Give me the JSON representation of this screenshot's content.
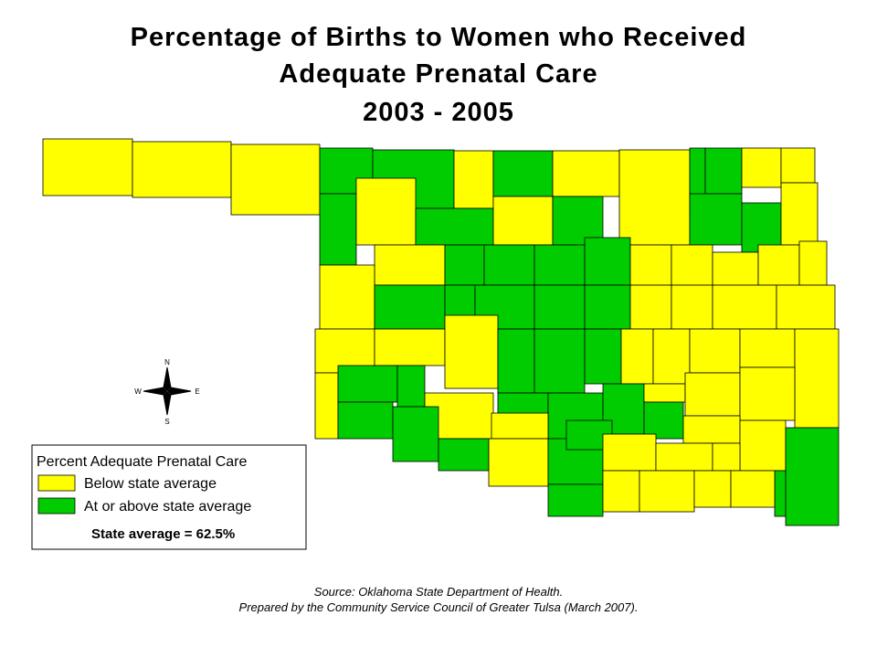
{
  "title": {
    "lines": [
      "Percentage of Births to Women who Received",
      "Adequate Prenatal Care",
      "2003 - 2005"
    ]
  },
  "compass": {
    "n": "N",
    "w": "W",
    "e": "E",
    "s": "S"
  },
  "legend": {
    "title": "Percent Adequate Prenatal Care",
    "items": [
      "Below state average",
      "At or above state average"
    ],
    "note": "State average = 62.5%"
  },
  "source": {
    "lines": [
      "Source:  Oklahoma State Department of Health.",
      "Prepared by the Community Service Council of Greater Tulsa (March 2007)."
    ]
  }
}
